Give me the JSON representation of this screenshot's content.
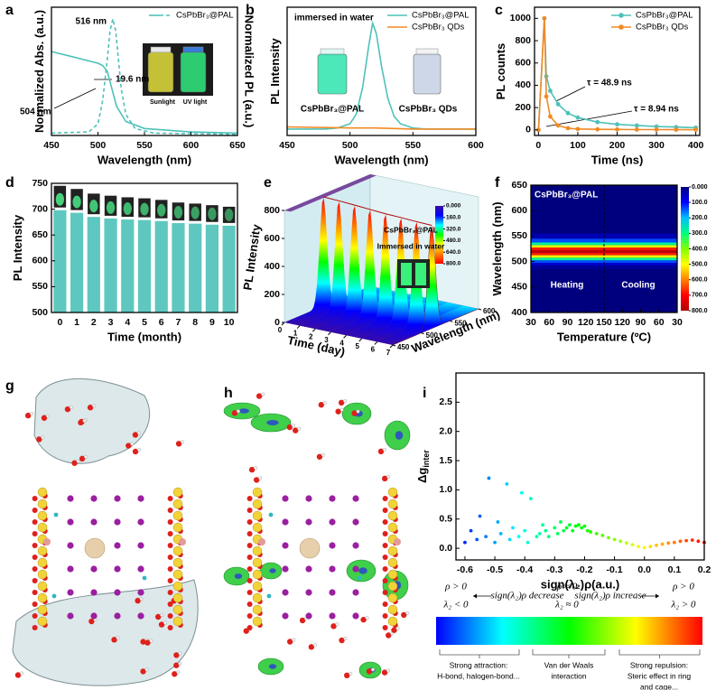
{
  "chart_data": [
    {
      "panel": "a",
      "type": "line",
      "xlabel": "Wavelength (nm)",
      "ylabel": "Normalized Abs. (a.u.)",
      "y2label": "Normalized PL (a.u.)",
      "xlim": [
        450,
        650
      ],
      "xticks": [
        450,
        500,
        550,
        600,
        650
      ],
      "ylim": [
        0,
        1.1
      ],
      "legend_label": "CsPbBr₃@PAL",
      "legend": "upper right",
      "annotations": [
        "516 nm",
        "504 nm",
        "19.6 nm",
        "Sunlight",
        "UV light"
      ],
      "series": [
        {
          "color": "#4fc1b9",
          "style": "solid",
          "x": [
            450,
            470,
            490,
            500,
            505,
            510,
            515,
            520,
            530,
            550,
            600,
            650
          ],
          "values": [
            0.72,
            0.68,
            0.64,
            0.62,
            0.6,
            0.55,
            0.4,
            0.25,
            0.12,
            0.06,
            0.03,
            0.02
          ]
        },
        {
          "color": "#4fc1b9",
          "style": "dashed",
          "x": [
            450,
            490,
            500,
            505,
            510,
            513,
            516,
            519,
            522,
            525,
            530,
            540,
            560,
            650
          ],
          "values": [
            0.02,
            0.03,
            0.1,
            0.3,
            0.65,
            0.9,
            1.0,
            0.9,
            0.65,
            0.4,
            0.18,
            0.06,
            0.02,
            0.01
          ]
        }
      ]
    },
    {
      "panel": "b",
      "type": "line",
      "xlabel": "Wavelength (nm)",
      "ylabel": "PL Intensity",
      "xlim": [
        450,
        600
      ],
      "xticks": [
        450,
        500,
        550,
        600
      ],
      "ylim": [
        -0.05,
        1.15
      ],
      "legend": "upper right",
      "annotations": [
        "immersed in water",
        "CsPbBr₃@PAL",
        "CsPbBr₃ QDs"
      ],
      "series": [
        {
          "name": "CsPbBr₃@PAL",
          "color": "#4fc1b9",
          "style": "solid",
          "x": [
            450,
            480,
            490,
            500,
            505,
            510,
            515,
            518,
            521,
            525,
            530,
            535,
            540,
            550,
            560,
            580,
            600
          ],
          "values": [
            0.01,
            0.01,
            0.02,
            0.06,
            0.15,
            0.4,
            0.8,
            1.0,
            0.9,
            0.6,
            0.3,
            0.13,
            0.06,
            0.02,
            0.01,
            0.01,
            0.01
          ]
        },
        {
          "name": "CsPbBr₃ QDs",
          "color": "#f08a24",
          "style": "solid",
          "x": [
            450,
            500,
            520,
            550,
            600
          ],
          "values": [
            0.03,
            0.02,
            0.02,
            0.01,
            0.01
          ]
        }
      ]
    },
    {
      "panel": "c",
      "type": "line",
      "xlabel": "Time (ns)",
      "ylabel": "PL counts",
      "xlim": [
        -10,
        410
      ],
      "xticks": [
        0,
        100,
        200,
        300,
        400
      ],
      "ylim": [
        -50,
        1100
      ],
      "yticks": [
        0,
        200,
        400,
        600,
        800,
        1000
      ],
      "legend": "upper right",
      "annotations": [
        "τ = 48.9 ns",
        "τ = 8.94 ns"
      ],
      "series": [
        {
          "name": "CsPbBr₃@PAL",
          "color": "#4fc1b9",
          "style": "solid",
          "marker": "circle",
          "x": [
            0,
            15,
            20,
            30,
            50,
            75,
            100,
            150,
            200,
            250,
            300,
            350,
            400
          ],
          "values": [
            0,
            1000,
            480,
            350,
            230,
            150,
            110,
            70,
            50,
            40,
            30,
            25,
            20
          ]
        },
        {
          "name": "CsPbBr₃ QDs",
          "color": "#f08a24",
          "style": "solid",
          "marker": "circle",
          "x": [
            0,
            15,
            20,
            30,
            50,
            75,
            100,
            150,
            200,
            250,
            300,
            350,
            400
          ],
          "values": [
            0,
            1000,
            300,
            120,
            40,
            15,
            8,
            5,
            4,
            3,
            3,
            2,
            2
          ]
        }
      ]
    },
    {
      "panel": "d",
      "type": "bar",
      "xlabel": "Time (month)",
      "ylabel": "PL Intensity",
      "categories": [
        "0",
        "1",
        "2",
        "3",
        "4",
        "5",
        "6",
        "7",
        "8",
        "9",
        "10"
      ],
      "values": [
        698,
        693,
        685,
        682,
        680,
        679,
        677,
        673,
        672,
        670,
        668
      ],
      "color": "#5ec8c0",
      "ylim": [
        500,
        750
      ],
      "yticks": [
        500,
        550,
        600,
        650,
        700,
        750
      ]
    },
    {
      "panel": "e",
      "type": "surface3d",
      "zlabel": "PL Intensity",
      "xlabel": "Time (day)",
      "ylabel": "Wavelength (nm)",
      "x": [
        0,
        1,
        2,
        3,
        4,
        5,
        6,
        7
      ],
      "values": [
        780,
        775,
        768,
        760,
        752,
        748,
        742,
        738
      ],
      "xlim": [
        0,
        7
      ],
      "xticks": [
        0,
        1,
        2,
        3,
        4,
        5,
        6,
        7
      ],
      "ylim": [
        450,
        600
      ],
      "yticks": [
        450,
        500,
        550,
        600
      ],
      "zlim": [
        0,
        800
      ],
      "zticks": [
        0,
        200,
        400,
        600,
        800
      ],
      "peak": 518,
      "colormap": [
        "#3a0ca3",
        "#0000ff",
        "#00ffff",
        "#00ff00",
        "#ffff00",
        "#ff8000",
        "#ff0000"
      ],
      "cbar_ticks": [
        {
          "value": 0,
          "label": "0.000"
        },
        {
          "value": 160,
          "label": "160.0"
        },
        {
          "value": 320,
          "label": "320.0"
        },
        {
          "value": 480,
          "label": "480.0"
        },
        {
          "value": 640,
          "label": "640.0"
        },
        {
          "value": 800,
          "label": "800.0"
        }
      ],
      "annotations": [
        "CsPbBr₃@PAL",
        "Immersed in water"
      ]
    },
    {
      "panel": "f",
      "type": "heatmap",
      "xlabel": "Temperature (ºC)",
      "ylabel": "Wavelength (nm)",
      "xlim": [
        0,
        240
      ],
      "xticks": [
        {
          "value": 0,
          "label": "30"
        },
        {
          "value": 30,
          "label": "60"
        },
        {
          "value": 60,
          "label": "90"
        },
        {
          "value": 90,
          "label": "120"
        },
        {
          "value": 120,
          "label": "150"
        },
        {
          "value": 150,
          "label": "120"
        },
        {
          "value": 180,
          "label": "90"
        },
        {
          "value": 210,
          "label": "60"
        },
        {
          "value": 240,
          "label": "30"
        }
      ],
      "ylim": [
        400,
        650
      ],
      "yticks": [
        400,
        450,
        500,
        550,
        600,
        650
      ],
      "divider": 120,
      "wavelengths": [
        480,
        490,
        495,
        500,
        505,
        510,
        515,
        520,
        525,
        530,
        535,
        540,
        550,
        560
      ],
      "intensity": [
        0,
        20,
        60,
        140,
        280,
        480,
        680,
        780,
        680,
        480,
        280,
        140,
        40,
        0
      ],
      "zlim": [
        0,
        800
      ],
      "colormap": [
        "#00007f",
        "#0000ff",
        "#00bfff",
        "#00ff80",
        "#80ff00",
        "#ffff00",
        "#ff8000",
        "#ff0000",
        "#b00000"
      ],
      "cbar_ticks": [
        {
          "value": 0,
          "label": "0.000"
        },
        {
          "value": 100,
          "label": "100.0"
        },
        {
          "value": 200,
          "label": "200.0"
        },
        {
          "value": 300,
          "label": "300.0"
        },
        {
          "value": 400,
          "label": "400.0"
        },
        {
          "value": 500,
          "label": "500.0"
        },
        {
          "value": 600,
          "label": "600.0"
        },
        {
          "value": 700,
          "label": "700.0"
        },
        {
          "value": 800,
          "label": "800.0"
        }
      ],
      "annotations": [
        "CsPbBr₃@PAL",
        "Heating",
        "Cooling"
      ]
    },
    {
      "panel": "g",
      "type": "render"
    },
    {
      "panel": "h",
      "type": "render"
    },
    {
      "panel": "i",
      "type": "scatter",
      "xlabel": "sign(λ₂)ρ(a.u.)",
      "ylabel": "Δg",
      "ylabel_sub": "inter",
      "xlim": [
        -0.63,
        0.2
      ],
      "xticks": [
        -0.6,
        -0.5,
        -0.4,
        -0.3,
        -0.2,
        -0.1,
        {
          "value": 0,
          "label": "0.0"
        },
        0.1,
        0.2
      ],
      "ylim": [
        -0.2,
        3.0
      ],
      "yticks": [
        {
          "value": 0,
          "label": "0.0"
        },
        0.5,
        {
          "value": 1,
          "label": "1.0"
        },
        1.5,
        {
          "value": 2,
          "label": "2.0"
        },
        2.5
      ],
      "colormap": [
        "#0000ff",
        "#00ffff",
        "#00ff00",
        "#ffff00",
        "#ff0000"
      ],
      "x": [
        -0.6,
        -0.58,
        -0.56,
        -0.55,
        -0.53,
        -0.52,
        -0.5,
        -0.49,
        -0.48,
        -0.46,
        -0.45,
        -0.44,
        -0.42,
        -0.41,
        -0.4,
        -0.39,
        -0.38,
        -0.36,
        -0.35,
        -0.34,
        -0.33,
        -0.32,
        -0.3,
        -0.29,
        -0.28,
        -0.27,
        -0.26,
        -0.25,
        -0.24,
        -0.23,
        -0.22,
        -0.21,
        -0.2,
        -0.19,
        -0.18,
        -0.16,
        -0.14,
        -0.12,
        -0.1,
        -0.08,
        -0.06,
        -0.04,
        -0.02,
        0.0,
        0.02,
        0.04,
        0.06,
        0.08,
        0.1,
        0.12,
        0.14,
        0.16,
        0.18,
        0.2
      ],
      "values": [
        0.1,
        0.3,
        0.15,
        0.55,
        0.2,
        1.2,
        0.1,
        0.45,
        0.25,
        1.1,
        0.15,
        0.35,
        0.2,
        0.95,
        0.3,
        0.1,
        0.85,
        0.2,
        0.25,
        0.4,
        0.3,
        0.2,
        0.35,
        0.25,
        0.45,
        0.3,
        0.35,
        0.4,
        0.3,
        0.38,
        0.4,
        0.35,
        0.38,
        0.3,
        0.28,
        0.25,
        0.22,
        0.18,
        0.15,
        0.12,
        0.09,
        0.06,
        0.03,
        0.01,
        0.03,
        0.05,
        0.07,
        0.09,
        0.1,
        0.12,
        0.13,
        0.14,
        0.12,
        0.1
      ],
      "legend_texts": [
        "ρ > 0",
        "λ₂ < 0",
        "sign(λ₂)ρ decrease",
        "ρ ≈ 0",
        "λ₂ ≈ 0",
        "sign(λ₂)ρ increase",
        "ρ > 0",
        "λ₂ > 0",
        "Strong attraction:",
        "H-bond, halogen-bond...",
        "Van der Waals",
        "interaction",
        "Strong repulsion:",
        "Steric effect in ring",
        "and cage..."
      ]
    }
  ]
}
